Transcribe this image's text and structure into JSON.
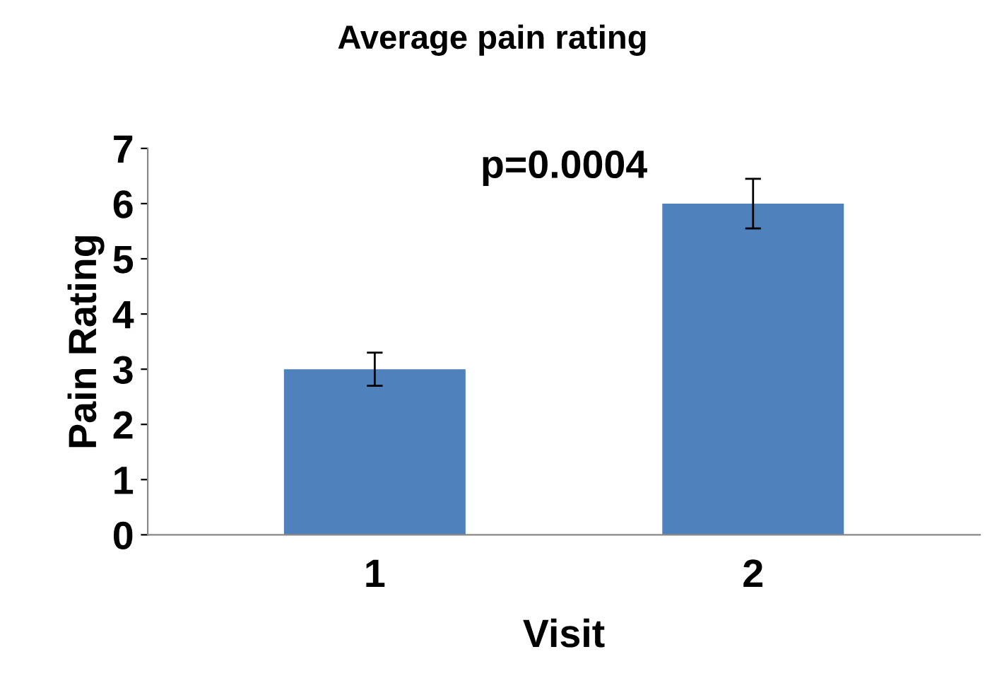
{
  "chart_data": {
    "type": "bar",
    "title": "Average pain rating",
    "xlabel": "Visit",
    "ylabel": "Pain Rating",
    "categories": [
      "1",
      "2"
    ],
    "values": [
      3.0,
      6.0
    ],
    "errors": [
      0.3,
      0.45
    ],
    "color": "#4f81bd",
    "ylim": [
      0,
      7
    ],
    "yticks": [
      0,
      1,
      2,
      3,
      4,
      5,
      6,
      7
    ],
    "grid": false,
    "legend": false,
    "annotations": [
      "p=0.0004"
    ]
  }
}
